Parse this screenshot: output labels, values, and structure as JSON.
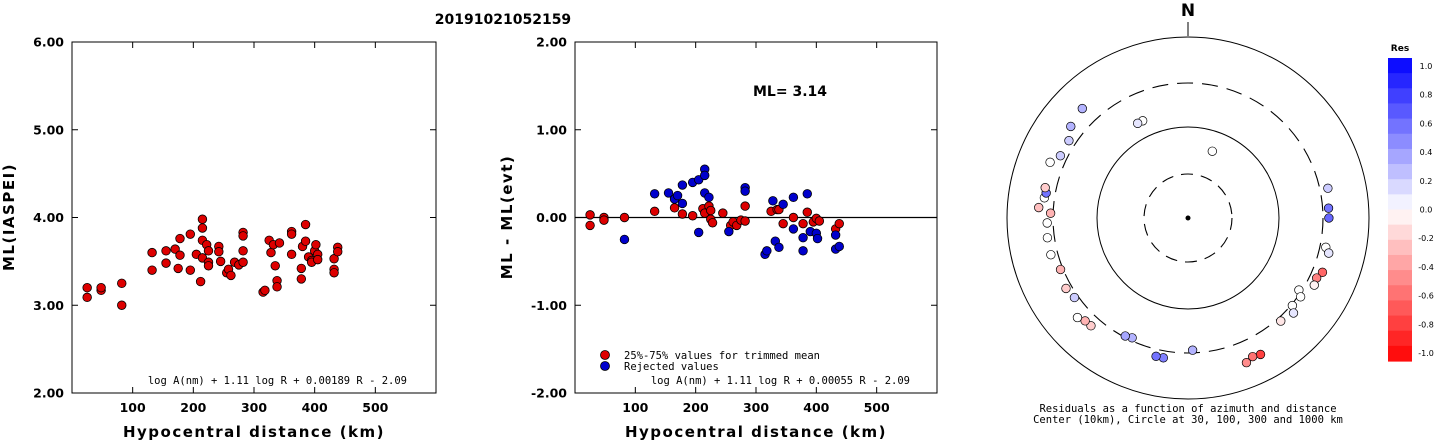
{
  "figure_title": "20191021052159",
  "chart_data": [
    {
      "type": "scatter",
      "id": "ml-vs-distance",
      "xlabel": "Hypocentral distance (km)",
      "ylabel": "ML(IASPEI)",
      "xlim": [
        0,
        600
      ],
      "ylim": [
        2.0,
        6.0
      ],
      "x_ticks": [
        100,
        200,
        300,
        400,
        500
      ],
      "y_ticks": [
        "2.00",
        "3.00",
        "4.00",
        "5.00",
        "6.00"
      ],
      "formula": "log A(nm) + 1.11 log R + 0.00189 R - 2.09",
      "marker_color": "#dd0000",
      "points": [
        [
          25,
          3.2
        ],
        [
          25,
          3.09
        ],
        [
          48,
          3.17
        ],
        [
          48,
          3.2
        ],
        [
          82,
          3.25
        ],
        [
          82,
          3.0
        ],
        [
          132,
          3.6
        ],
        [
          132,
          3.4
        ],
        [
          155,
          3.62
        ],
        [
          155,
          3.48
        ],
        [
          170,
          3.64
        ],
        [
          175,
          3.42
        ],
        [
          178,
          3.76
        ],
        [
          178,
          3.57
        ],
        [
          195,
          3.81
        ],
        [
          195,
          3.4
        ],
        [
          205,
          3.58
        ],
        [
          212,
          3.27
        ],
        [
          215,
          3.98
        ],
        [
          215,
          3.88
        ],
        [
          215,
          3.74
        ],
        [
          215,
          3.54
        ],
        [
          222,
          3.69
        ],
        [
          225,
          3.62
        ],
        [
          225,
          3.49
        ],
        [
          225,
          3.45
        ],
        [
          242,
          3.67
        ],
        [
          242,
          3.61
        ],
        [
          245,
          3.5
        ],
        [
          255,
          3.37
        ],
        [
          258,
          3.41
        ],
        [
          262,
          3.34
        ],
        [
          268,
          3.49
        ],
        [
          275,
          3.46
        ],
        [
          282,
          3.83
        ],
        [
          282,
          3.79
        ],
        [
          282,
          3.62
        ],
        [
          282,
          3.49
        ],
        [
          315,
          3.15
        ],
        [
          318,
          3.17
        ],
        [
          325,
          3.74
        ],
        [
          328,
          3.6
        ],
        [
          332,
          3.69
        ],
        [
          335,
          3.45
        ],
        [
          338,
          3.28
        ],
        [
          338,
          3.21
        ],
        [
          342,
          3.71
        ],
        [
          362,
          3.84
        ],
        [
          362,
          3.81
        ],
        [
          362,
          3.58
        ],
        [
          378,
          3.42
        ],
        [
          378,
          3.3
        ],
        [
          380,
          3.67
        ],
        [
          385,
          3.92
        ],
        [
          385,
          3.73
        ],
        [
          390,
          3.55
        ],
        [
          395,
          3.51
        ],
        [
          395,
          3.49
        ],
        [
          400,
          3.62
        ],
        [
          402,
          3.69
        ],
        [
          405,
          3.58
        ],
        [
          405,
          3.52
        ],
        [
          432,
          3.53
        ],
        [
          432,
          3.41
        ],
        [
          432,
          3.37
        ],
        [
          438,
          3.66
        ],
        [
          438,
          3.61
        ]
      ]
    },
    {
      "type": "scatter",
      "id": "residual-vs-distance",
      "xlabel": "Hypocentral distance (km)",
      "ylabel": "ML - ML(evt)",
      "xlim": [
        0,
        600
      ],
      "ylim": [
        -2.0,
        2.0
      ],
      "x_ticks": [
        100,
        200,
        300,
        400,
        500
      ],
      "y_ticks": [
        "-2.00",
        "-1.00",
        "0.00",
        "1.00",
        "2.00"
      ],
      "annotation": "ML= 3.14",
      "formula": "log A(nm) + 1.11 log R + 0.00055 R - 2.09",
      "legend": [
        {
          "label": "25%-75% values for trimmed mean",
          "color": "#dd0000"
        },
        {
          "label": "Rejected values",
          "color": "#0000cc"
        }
      ],
      "trimmed_points": [
        [
          25,
          0.03
        ],
        [
          25,
          -0.09
        ],
        [
          48,
          0.0
        ],
        [
          48,
          -0.03
        ],
        [
          82,
          0.0
        ],
        [
          132,
          0.07
        ],
        [
          165,
          0.11
        ],
        [
          178,
          0.04
        ],
        [
          195,
          0.02
        ],
        [
          212,
          0.1
        ],
        [
          215,
          0.05
        ],
        [
          222,
          0.13
        ],
        [
          225,
          0.08
        ],
        [
          225,
          -0.02
        ],
        [
          228,
          -0.06
        ],
        [
          245,
          0.05
        ],
        [
          258,
          -0.09
        ],
        [
          262,
          -0.05
        ],
        [
          268,
          -0.09
        ],
        [
          275,
          -0.03
        ],
        [
          282,
          0.13
        ],
        [
          282,
          -0.04
        ],
        [
          325,
          0.07
        ],
        [
          335,
          0.09
        ],
        [
          338,
          0.09
        ],
        [
          345,
          -0.07
        ],
        [
          362,
          0.0
        ],
        [
          378,
          -0.07
        ],
        [
          385,
          0.06
        ],
        [
          395,
          -0.05
        ],
        [
          400,
          -0.01
        ],
        [
          405,
          -0.04
        ],
        [
          432,
          -0.13
        ],
        [
          438,
          -0.07
        ]
      ],
      "rejected_points": [
        [
          82,
          -0.25
        ],
        [
          132,
          0.27
        ],
        [
          155,
          0.28
        ],
        [
          165,
          0.21
        ],
        [
          170,
          0.25
        ],
        [
          178,
          0.37
        ],
        [
          178,
          0.16
        ],
        [
          195,
          0.4
        ],
        [
          205,
          0.43
        ],
        [
          205,
          -0.17
        ],
        [
          215,
          0.55
        ],
        [
          215,
          0.48
        ],
        [
          215,
          0.28
        ],
        [
          222,
          0.23
        ],
        [
          255,
          -0.16
        ],
        [
          282,
          0.34
        ],
        [
          282,
          0.3
        ],
        [
          315,
          -0.42
        ],
        [
          318,
          -0.38
        ],
        [
          328,
          0.19
        ],
        [
          332,
          -0.27
        ],
        [
          338,
          -0.34
        ],
        [
          345,
          0.15
        ],
        [
          362,
          0.23
        ],
        [
          362,
          -0.13
        ],
        [
          378,
          -0.23
        ],
        [
          378,
          -0.38
        ],
        [
          385,
          0.27
        ],
        [
          390,
          -0.16
        ],
        [
          400,
          -0.18
        ],
        [
          402,
          -0.24
        ],
        [
          432,
          -0.2
        ],
        [
          432,
          -0.36
        ],
        [
          438,
          -0.33
        ]
      ]
    },
    {
      "type": "polar-scatter",
      "id": "azimuth-residuals",
      "north_label": "N",
      "caption_line1": "Residuals as a function of azimuth and distance",
      "caption_line2": "Center (10km), Circle at 30, 100, 300 and 1000 km",
      "rings_km": [
        30,
        100,
        300,
        1000
      ],
      "stations": [
        {
          "az": 20,
          "dist": 60,
          "res": 0.0
        },
        {
          "az": 335,
          "dist": 150,
          "res": 0.0
        },
        {
          "az": 332,
          "dist": 150,
          "res": 0.1
        },
        {
          "az": 86,
          "dist": 350,
          "res": 0.55
        },
        {
          "az": 90,
          "dist": 350,
          "res": 0.6
        },
        {
          "az": 78,
          "dist": 370,
          "res": 0.2
        },
        {
          "az": 102,
          "dist": 350,
          "res": 0.0
        },
        {
          "az": 104,
          "dist": 390,
          "res": 0.1
        },
        {
          "az": 112,
          "dist": 390,
          "res": -0.6
        },
        {
          "az": 115,
          "dist": 360,
          "res": -0.5
        },
        {
          "az": 118,
          "dist": 370,
          "res": -0.05
        },
        {
          "az": 123,
          "dist": 280,
          "res": 0.0
        },
        {
          "az": 125,
          "dist": 320,
          "res": 0.0
        },
        {
          "az": 130,
          "dist": 310,
          "res": 0.0
        },
        {
          "az": 132,
          "dist": 360,
          "res": 0.1
        },
        {
          "az": 138,
          "dist": 330,
          "res": -0.1
        },
        {
          "az": 152,
          "dist": 500,
          "res": -0.75
        },
        {
          "az": 155,
          "dist": 480,
          "res": -0.55
        },
        {
          "az": 158,
          "dist": 520,
          "res": -0.45
        },
        {
          "az": 178,
          "dist": 280,
          "res": 0.3
        },
        {
          "az": 190,
          "dist": 360,
          "res": 0.5
        },
        {
          "az": 193,
          "dist": 360,
          "res": 0.55
        },
        {
          "az": 205,
          "dist": 280,
          "res": 0.3
        },
        {
          "az": 208,
          "dist": 290,
          "res": 0.35
        },
        {
          "az": 222,
          "dist": 390,
          "res": -0.2
        },
        {
          "az": 225,
          "dist": 395,
          "res": -0.3
        },
        {
          "az": 228,
          "dist": 430,
          "res": 0.0
        },
        {
          "az": 235,
          "dist": 330,
          "res": 0.2
        },
        {
          "az": 240,
          "dist": 350,
          "res": -0.2
        },
        {
          "az": 248,
          "dist": 320,
          "res": -0.3
        },
        {
          "az": 255,
          "dist": 360,
          "res": 0.0
        },
        {
          "az": 262,
          "dist": 360,
          "res": 0.0
        },
        {
          "az": 268,
          "dist": 350,
          "res": 0.0
        },
        {
          "az": 272,
          "dist": 320,
          "res": -0.3
        },
        {
          "az": 274,
          "dist": 440,
          "res": -0.25
        },
        {
          "az": 278,
          "dist": 390,
          "res": 0.0
        },
        {
          "az": 280,
          "dist": 380,
          "res": 0.55
        },
        {
          "az": 282,
          "dist": 400,
          "res": -0.2
        },
        {
          "az": 292,
          "dist": 430,
          "res": 0.0
        },
        {
          "az": 296,
          "dist": 360,
          "res": 0.2
        },
        {
          "az": 303,
          "dist": 360,
          "res": 0.2
        },
        {
          "az": 308,
          "dist": 430,
          "res": 0.3
        },
        {
          "az": 316,
          "dist": 470,
          "res": 0.3
        }
      ]
    }
  ],
  "colorbar": {
    "title": "Res",
    "ticks": [
      "1.0",
      "0.8",
      "0.6",
      "0.4",
      "0.2",
      "0.0",
      "-0.2",
      "-0.4",
      "-0.6",
      "-0.8",
      "-1.0"
    ]
  }
}
